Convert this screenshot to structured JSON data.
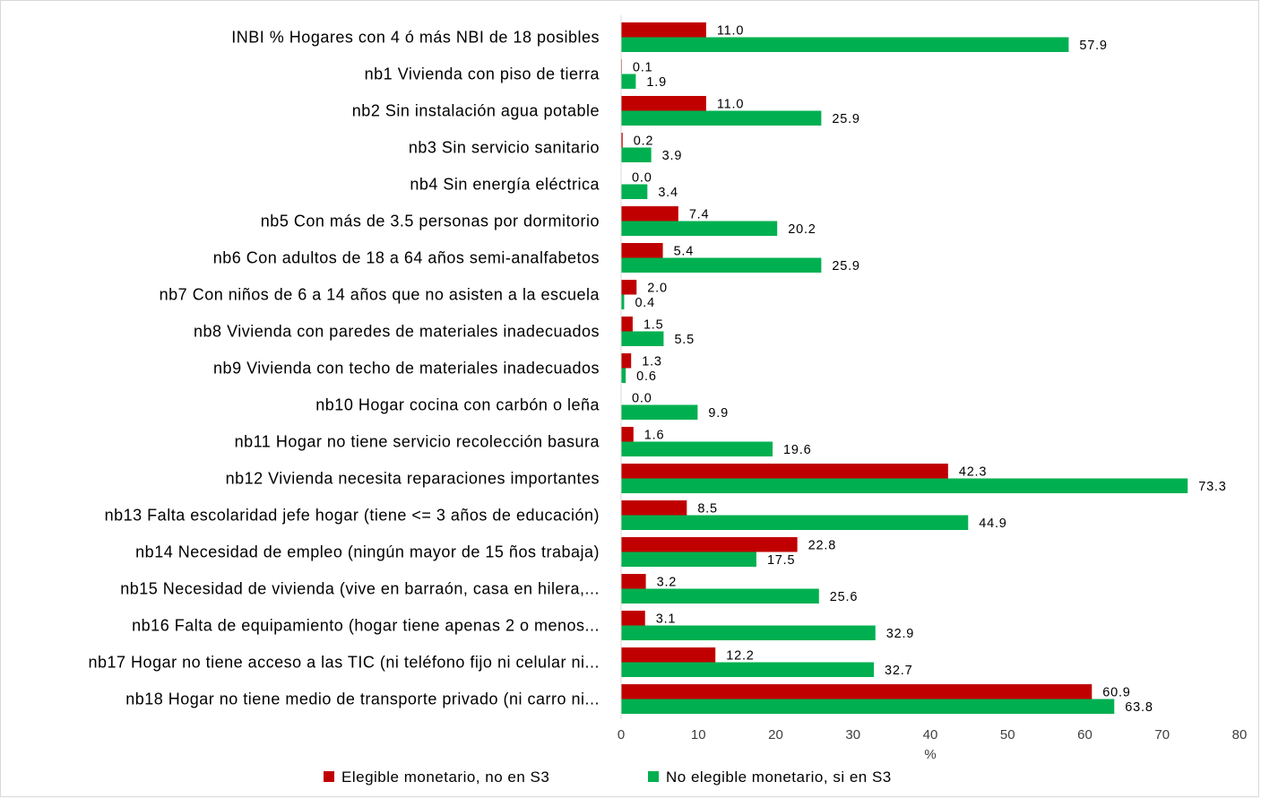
{
  "chart_data": {
    "type": "bar",
    "orientation": "horizontal",
    "categories": [
      "INBI % Hogares con 4 ó más NBI de 18 posibles",
      "nb1 Vivienda con piso de tierra",
      "nb2 Sin instalación agua potable",
      "nb3 Sin servicio sanitario",
      "nb4 Sin energía eléctrica",
      "nb5 Con más de 3.5 personas por dormitorio",
      "nb6 Con adultos de 18 a 64 años semi-analfabetos",
      "nb7 Con niños de 6 a 14 años que no asisten a la escuela",
      "nb8 Vivienda con paredes de materiales inadecuados",
      "nb9 Vivienda con techo de materiales inadecuados",
      "nb10 Hogar cocina con carbón o leña",
      "nb11 Hogar no tiene servicio recolección basura",
      "nb12 Vivienda necesita reparaciones importantes",
      "nb13 Falta escolaridad jefe hogar (tiene <= 3 años de educación)",
      "nb14 Necesidad de empleo (ningún mayor de 15 ños trabaja)",
      "nb15 Necesidad de vivienda (vive en barraón, casa en hilera,...",
      "nb16 Falta de equipamiento (hogar tiene apenas 2 o menos...",
      "nb17 Hogar no tiene acceso a las TIC (ni teléfono fijo ni celular ni...",
      "nb18 Hogar no tiene medio de transporte privado (ni carro ni..."
    ],
    "series": [
      {
        "name": "Elegible monetario, no en S3",
        "color": "#c00000",
        "values": [
          11.0,
          0.1,
          11.0,
          0.2,
          0.0,
          7.4,
          5.4,
          2.0,
          1.5,
          1.3,
          0.0,
          1.6,
          42.3,
          8.5,
          22.8,
          3.2,
          3.1,
          12.2,
          60.9
        ],
        "labels": [
          "11.0",
          "0.1",
          "11.0",
          "0.2",
          "0.0",
          "7.4",
          "5.4",
          "2.0",
          "1.5",
          "1.3",
          "0.0",
          "1.6",
          "42.3",
          "8.5",
          "22.8",
          "3.2",
          "3.1",
          "12.2",
          "60.9"
        ]
      },
      {
        "name": "No elegible monetario, si en S3",
        "color": "#00b050",
        "values": [
          57.9,
          1.9,
          25.9,
          3.9,
          3.4,
          20.2,
          25.9,
          0.4,
          5.5,
          0.6,
          9.9,
          19.6,
          73.3,
          44.9,
          17.5,
          25.6,
          32.9,
          32.7,
          63.8
        ],
        "labels": [
          "57.9",
          "1.9",
          "25.9",
          "3.9",
          "3.4",
          "20.2",
          "25.9",
          "0.4",
          "5.5",
          "0.6",
          "9.9",
          "19.6",
          "73.3",
          "44.9",
          "17.5",
          "25.6",
          "32.9",
          "32.7",
          "63.8"
        ]
      }
    ],
    "xlim": [
      0,
      80
    ],
    "xticks": [
      "0",
      "10",
      "20",
      "30",
      "40",
      "50",
      "60",
      "70",
      "80"
    ],
    "xlabel": "%",
    "ylabel": "",
    "title": "",
    "grid": false,
    "legend_position": "bottom"
  }
}
